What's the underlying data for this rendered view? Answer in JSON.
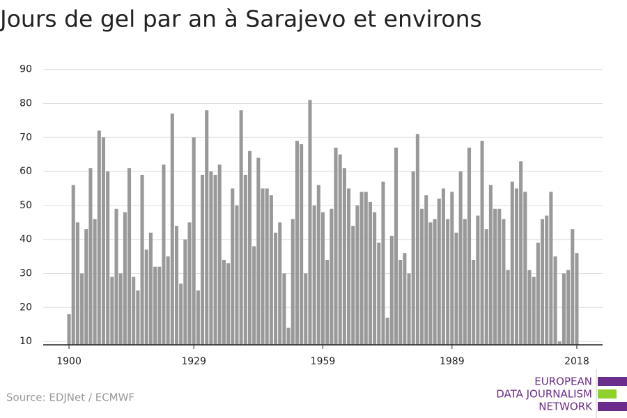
{
  "chart_data": {
    "type": "bar",
    "title": "Jours de gel par an à Sarajevo et environs",
    "x": [
      1900,
      1901,
      1902,
      1903,
      1904,
      1905,
      1906,
      1907,
      1908,
      1909,
      1910,
      1911,
      1912,
      1913,
      1914,
      1915,
      1916,
      1917,
      1918,
      1919,
      1920,
      1921,
      1922,
      1923,
      1924,
      1925,
      1926,
      1927,
      1928,
      1929,
      1930,
      1931,
      1932,
      1933,
      1934,
      1935,
      1936,
      1937,
      1938,
      1939,
      1940,
      1941,
      1942,
      1943,
      1944,
      1945,
      1946,
      1947,
      1948,
      1949,
      1950,
      1951,
      1952,
      1953,
      1954,
      1955,
      1956,
      1957,
      1958,
      1959,
      1960,
      1961,
      1962,
      1963,
      1964,
      1965,
      1966,
      1967,
      1968,
      1969,
      1970,
      1971,
      1972,
      1973,
      1974,
      1975,
      1976,
      1977,
      1978,
      1979,
      1980,
      1981,
      1982,
      1983,
      1984,
      1985,
      1986,
      1987,
      1988,
      1989,
      1990,
      1991,
      1992,
      1993,
      1994,
      1995,
      1996,
      1997,
      1998,
      1999,
      2000,
      2001,
      2002,
      2003,
      2004,
      2005,
      2006,
      2007,
      2008,
      2009,
      2010,
      2011,
      2012,
      2013,
      2014,
      2015,
      2016,
      2017,
      2018
    ],
    "values": [
      18,
      56,
      45,
      30,
      43,
      61,
      46,
      72,
      70,
      60,
      29,
      49,
      30,
      48,
      61,
      29,
      25,
      59,
      37,
      42,
      32,
      32,
      62,
      35,
      77,
      44,
      27,
      40,
      45,
      70,
      25,
      59,
      78,
      60,
      59,
      62,
      34,
      33,
      55,
      50,
      78,
      59,
      66,
      38,
      64,
      55,
      55,
      53,
      42,
      45,
      30,
      14,
      46,
      69,
      68,
      30,
      81,
      50,
      56,
      48,
      34,
      49,
      67,
      65,
      61,
      55,
      44,
      50,
      54,
      54,
      51,
      48,
      39,
      57,
      17,
      41,
      67,
      34,
      36,
      30,
      60,
      71,
      49,
      53,
      45,
      46,
      52,
      55,
      46,
      54,
      42,
      60,
      46,
      67,
      34,
      47,
      69,
      43,
      56,
      49,
      49,
      46,
      31,
      57,
      55,
      63,
      54,
      31,
      29,
      39,
      46,
      47,
      54,
      35,
      10,
      30,
      31,
      43,
      36
    ],
    "color": "#999999",
    "xlim": [
      1894,
      2024
    ],
    "xticks": [
      1900,
      1929,
      1959,
      1989,
      2018
    ],
    "ylim": [
      9,
      93
    ],
    "yticks": [
      10,
      20,
      30,
      40,
      50,
      60,
      70,
      80,
      90
    ],
    "grid": true,
    "source": "Source: EDJNet / ECMWF",
    "logo": [
      "EUROPEAN",
      "DATA JOURNALISM",
      "NETWORK"
    ]
  }
}
